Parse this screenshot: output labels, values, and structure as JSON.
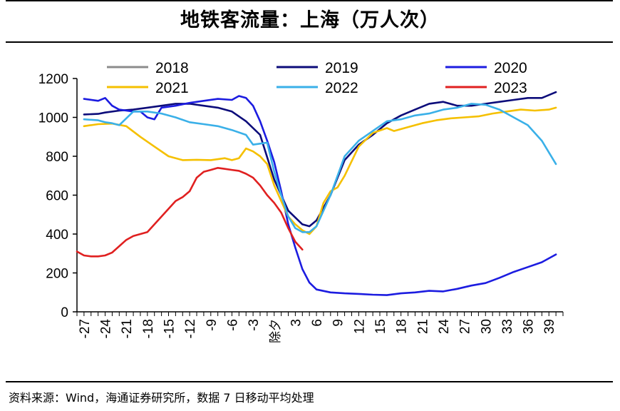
{
  "header": {
    "title": "地铁客流量：上海（万人次）"
  },
  "footer": {
    "source": "资料来源：Wind，海通证券研究所，数据 7 日移动平均处理"
  },
  "chart_data": {
    "type": "line",
    "title": "地铁客流量：上海（万人次）",
    "xlabel": "",
    "ylabel": "",
    "ylim": [
      0,
      1200
    ],
    "yticks": [
      0,
      200,
      400,
      600,
      800,
      1000,
      1200
    ],
    "xlim": [
      -28,
      41
    ],
    "xticks": [
      {
        "x": -27,
        "label": "-27"
      },
      {
        "x": -24,
        "label": "-24"
      },
      {
        "x": -21,
        "label": "-21"
      },
      {
        "x": -18,
        "label": "-18"
      },
      {
        "x": -15,
        "label": "-15"
      },
      {
        "x": -12,
        "label": "-12"
      },
      {
        "x": -9,
        "label": "-9"
      },
      {
        "x": -6,
        "label": "-6"
      },
      {
        "x": -3,
        "label": "-3"
      },
      {
        "x": 0,
        "label": "除夕"
      },
      {
        "x": 3,
        "label": "3"
      },
      {
        "x": 6,
        "label": "6"
      },
      {
        "x": 9,
        "label": "9"
      },
      {
        "x": 12,
        "label": "12"
      },
      {
        "x": 15,
        "label": "15"
      },
      {
        "x": 18,
        "label": "18"
      },
      {
        "x": 21,
        "label": "21"
      },
      {
        "x": 24,
        "label": "24"
      },
      {
        "x": 27,
        "label": "27"
      },
      {
        "x": 30,
        "label": "30"
      },
      {
        "x": 33,
        "label": "33"
      },
      {
        "x": 36,
        "label": "36"
      },
      {
        "x": 39,
        "label": "39"
      }
    ],
    "legend_position": "top",
    "grid": false,
    "series": [
      {
        "name": "2018",
        "color": "#8c8c8c",
        "x": [],
        "y": []
      },
      {
        "name": "2019",
        "color": "#0c0c7a",
        "x": [
          -27,
          -25,
          -24,
          -22,
          -20,
          -18,
          -16,
          -14,
          -12,
          -10,
          -8,
          -6,
          -4,
          -2,
          0,
          2,
          4,
          5,
          6,
          8,
          10,
          12,
          14,
          16,
          18,
          20,
          22,
          24,
          26,
          28,
          30,
          32,
          34,
          36,
          38,
          40
        ],
        "y": [
          1015,
          1018,
          1025,
          1035,
          1040,
          1050,
          1060,
          1070,
          1070,
          1060,
          1050,
          1030,
          980,
          910,
          680,
          520,
          450,
          440,
          470,
          600,
          780,
          860,
          910,
          970,
          1010,
          1040,
          1070,
          1080,
          1060,
          1060,
          1070,
          1080,
          1090,
          1100,
          1100,
          1130
        ]
      },
      {
        "name": "2020",
        "color": "#1c1ce0",
        "x": [
          -27,
          -25,
          -24,
          -23,
          -22,
          -20,
          -19,
          -18,
          -17,
          -16,
          -14,
          -12,
          -10,
          -8,
          -6,
          -5,
          -4,
          -3,
          -2,
          -1,
          0,
          1,
          2,
          3,
          4,
          5,
          6,
          8,
          10,
          12,
          14,
          16,
          18,
          20,
          22,
          24,
          26,
          28,
          30,
          32,
          34,
          36,
          38,
          40
        ],
        "y": [
          1095,
          1085,
          1100,
          1060,
          1040,
          1030,
          1030,
          1000,
          990,
          1050,
          1060,
          1075,
          1085,
          1095,
          1090,
          1110,
          1100,
          1060,
          980,
          880,
          770,
          620,
          450,
          330,
          220,
          150,
          115,
          100,
          95,
          92,
          88,
          86,
          95,
          100,
          108,
          105,
          118,
          135,
          148,
          175,
          205,
          230,
          255,
          295
        ]
      },
      {
        "name": "2021",
        "color": "#f5c000",
        "x": [
          -27,
          -25,
          -23,
          -21,
          -19,
          -17,
          -15,
          -13,
          -11,
          -9,
          -7,
          -6,
          -5,
          -4,
          -3,
          -2,
          -1,
          0,
          1,
          2,
          3,
          4,
          5,
          6,
          7,
          8,
          9,
          10,
          12,
          14,
          16,
          17,
          19,
          21,
          23,
          25,
          27,
          29,
          31,
          33,
          35,
          37,
          39,
          40
        ],
        "y": [
          955,
          965,
          968,
          955,
          900,
          850,
          800,
          780,
          782,
          780,
          790,
          780,
          790,
          840,
          825,
          800,
          760,
          650,
          570,
          490,
          450,
          420,
          400,
          440,
          560,
          620,
          640,
          700,
          850,
          920,
          945,
          930,
          950,
          970,
          985,
          995,
          1000,
          1005,
          1020,
          1030,
          1040,
          1035,
          1040,
          1050
        ]
      },
      {
        "name": "2022",
        "color": "#3ab0e8",
        "x": [
          -27,
          -25,
          -24,
          -23,
          -22,
          -20,
          -18,
          -16,
          -14,
          -12,
          -10,
          -8,
          -6,
          -4,
          -3,
          -2,
          -1,
          0,
          1,
          2,
          3,
          4,
          5,
          6,
          8,
          10,
          12,
          14,
          16,
          18,
          20,
          22,
          24,
          26,
          28,
          30,
          32,
          34,
          36,
          38,
          40
        ],
        "y": [
          990,
          985,
          975,
          970,
          960,
          1030,
          1030,
          1020,
          1000,
          975,
          965,
          955,
          935,
          910,
          860,
          865,
          870,
          720,
          600,
          490,
          430,
          410,
          410,
          440,
          600,
          800,
          880,
          930,
          980,
          990,
          1010,
          1020,
          1040,
          1050,
          1070,
          1065,
          1040,
          1000,
          960,
          880,
          760
        ]
      },
      {
        "name": "2023",
        "color": "#e02020",
        "x": [
          -28,
          -27,
          -26,
          -25,
          -24,
          -23,
          -21,
          -20,
          -18,
          -16,
          -14,
          -13,
          -12,
          -11,
          -10,
          -9,
          -8,
          -7,
          -6,
          -5,
          -4,
          -3,
          -2,
          -1,
          0,
          1,
          2,
          3,
          4
        ],
        "y": [
          310,
          290,
          285,
          285,
          290,
          305,
          370,
          390,
          410,
          490,
          570,
          590,
          620,
          690,
          720,
          730,
          740,
          735,
          730,
          725,
          710,
          690,
          650,
          600,
          560,
          510,
          430,
          360,
          320
        ]
      }
    ]
  }
}
